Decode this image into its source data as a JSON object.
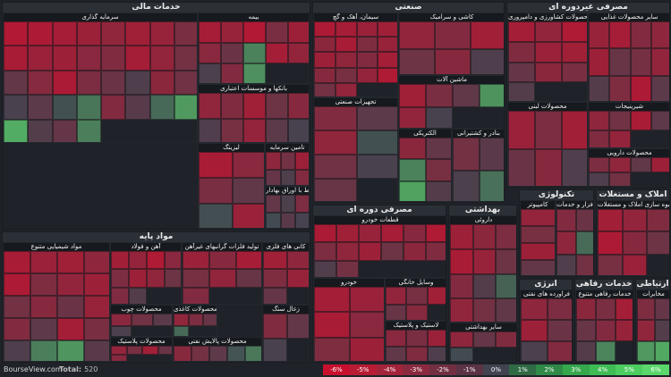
{
  "footer": {
    "brand": "BourseView.com",
    "total_label": "Total:",
    "total_value": "520"
  },
  "legend": [
    {
      "label": "-6%",
      "color": "#c8102e"
    },
    {
      "label": "-5%",
      "color": "#b81c34"
    },
    {
      "label": "-4%",
      "color": "#a3243a"
    },
    {
      "label": "-3%",
      "color": "#8b2a3f"
    },
    {
      "label": "-2%",
      "color": "#722f42"
    },
    {
      "label": "-1%",
      "color": "#5b3344"
    },
    {
      "label": "0%",
      "color": "#414450"
    },
    {
      "label": "1%",
      "color": "#2f6a45"
    },
    {
      "label": "2%",
      "color": "#2f8a48"
    },
    {
      "label": "3%",
      "color": "#35a84c"
    },
    {
      "label": "4%",
      "color": "#3fbd55"
    },
    {
      "label": "5%",
      "color": "#4ccd60"
    },
    {
      "label": "6%",
      "color": "#5ad86b"
    }
  ],
  "chart_data": {
    "type": "heatmap",
    "color_scale": {
      "min": -6,
      "max": 6,
      "negative": "#c8102e",
      "neutral": "#414450",
      "positive": "#5ad86b"
    },
    "sectors": [
      {
        "name": "خدمات مالی",
        "groups": [
          {
            "name": "سرمایه گذاری",
            "changes": [
              -5,
              -4.8,
              -4.5,
              -4,
              -3.5,
              -4.2,
              -3.8,
              -2.5,
              -4.6,
              -3.9,
              -4.1,
              -3.2,
              -2.8,
              -4.4,
              -3.6,
              -2.2,
              -1.5,
              -3,
              -4.7,
              -2.6,
              -1.8,
              -0.6,
              -3.3,
              -2.1,
              -0.4,
              -1.2,
              0.5,
              2,
              -2.9,
              -1,
              1.5,
              3.5,
              4.2,
              -0.8,
              -1.6,
              2.4
            ]
          },
          {
            "name": "بیمه",
            "changes": [
              -4.5,
              -3.8,
              -5,
              -2.5,
              -4.1,
              -3.2,
              -1.8,
              2.5,
              -4.4,
              -3.6,
              -0.5,
              -2.9,
              3.1
            ]
          },
          {
            "name": "بانکها و موسسات اعتباری",
            "changes": [
              -3.5,
              -2.8,
              -4.2,
              -1.9,
              -3.1,
              -0.7,
              -2.4,
              -3.7,
              -1.2,
              -0.3
            ]
          },
          {
            "name": "لیزینگ",
            "changes": [
              -4.6,
              -3.2,
              -2.5,
              -1.4,
              0.4,
              -3.9
            ]
          },
          {
            "name": "تامین سرمایه",
            "changes": [
              -3.4,
              -2.2,
              -4.1,
              -1.6,
              -0.6,
              -2.9
            ]
          },
          {
            "name": "فعالیتهای مرتبط با اوراق بهادار",
            "changes": [
              -1.5,
              -0.5,
              -2.6,
              0.3,
              -1.1,
              -0.2
            ]
          }
        ]
      },
      {
        "name": "صنعتی",
        "groups": [
          {
            "name": "سیمان، آهک و گچ",
            "changes": [
              -4.8,
              -4.5,
              -3.9,
              -4.2,
              -3.3,
              -4.6,
              -2.7,
              -3.8,
              -4.1,
              -3.5,
              -2.9,
              -4.4,
              -3.1,
              -2.4,
              -3.7,
              -4.9,
              -2.2,
              -3.6
            ]
          },
          {
            "name": "کاشی و سرامیک",
            "changes": [
              -3.6,
              -2.9,
              -4.3,
              -1.9,
              -3.1,
              -0.6
            ]
          },
          {
            "name": "ماشین آلات",
            "changes": [
              -4.2,
              -2.5,
              -1.4,
              3.2,
              -3.6,
              -0.3
            ]
          },
          {
            "name": "تجهیزات صنعتی",
            "changes": [
              -2.8,
              -1.2,
              -3.5,
              0.5,
              -2.1,
              -0.4,
              -1.7
            ]
          },
          {
            "name": "الکتریکی",
            "changes": [
              -3.3,
              -1.5,
              2.5,
              -2.4,
              3.8,
              -0.9
            ]
          },
          {
            "name": "بنادر و کشتیرانی",
            "changes": [
              -2.2,
              -1.1,
              -0.5,
              1.8
            ]
          }
        ]
      },
      {
        "name": "مصرفی غیردوره ای",
        "groups": [
          {
            "name": "محصولات کشاورزی و دامپروری",
            "changes": [
              -4.4,
              -3.6,
              -4.9,
              -2.8,
              -3.9,
              -4.2,
              -1.6,
              -3.3,
              -2.5,
              -0.8
            ]
          },
          {
            "name": "سایر محصولات غذایی",
            "changes": [
              -3.8,
              -4.5,
              -2.9,
              -3.4,
              -4.1,
              -1.7,
              -2.3,
              -3.6,
              -0.9,
              -2.7,
              -4.8,
              -1.2
            ]
          },
          {
            "name": "محصولات لبنی",
            "changes": [
              -3.9,
              -2.6,
              -4.3,
              -1.8,
              -3.1,
              -0.7
            ]
          },
          {
            "name": "شیرینیجات",
            "changes": [
              -3.4,
              -2.1,
              -4.6,
              -1.3,
              -2.8,
              -3.7
            ]
          },
          {
            "name": "محصولات دارویی",
            "changes": [
              -2.6,
              -3.5,
              -1.4,
              -4.1,
              -0.6,
              -2.2
            ]
          }
        ]
      },
      {
        "name": "مصرفی دوره ای",
        "groups": [
          {
            "name": "قطعات خودرو",
            "changes": [
              -4.7,
              -4.2,
              -3.8,
              -4.5,
              -3.1,
              -4.9,
              -2.6,
              -3.5,
              -4.1,
              -1.9,
              -3.3,
              -2.8,
              -0.7,
              -2.2
            ]
          },
          {
            "name": "خودرو",
            "changes": [
              -4.4,
              -3.9,
              -4.6,
              -3.2,
              -2.7,
              -4.1
            ]
          },
          {
            "name": "وسایل خانگی",
            "changes": [
              -3.6,
              -2.4,
              -4.2,
              -1.7,
              -3.1
            ]
          },
          {
            "name": "لاستیک و پلاستیک",
            "changes": [
              -3.2,
              -2.5,
              -3.9,
              -1.4,
              -2.8,
              -0.6
            ]
          }
        ]
      },
      {
        "name": "بهداشتی",
        "groups": [
          {
            "name": "داروئی",
            "changes": [
              -4.1,
              -3.3,
              -2.6,
              -4.6,
              -3.8,
              -1.9,
              -2.9,
              -0.8,
              1.2,
              -3.5,
              -2.2,
              -1.4
            ]
          },
          {
            "name": "سایر بهداشتی",
            "changes": [
              -3.4,
              -1.6,
              -2.8,
              0.3
            ]
          }
        ]
      },
      {
        "name": "تکنولوژی",
        "groups": [
          {
            "name": "کامپیوتر",
            "changes": [
              -3.7,
              -2.4,
              -4.1,
              -1.5
            ]
          },
          {
            "name": "نرم افزار و خدمات",
            "changes": [
              -2.9,
              -1.8,
              -3.4,
              1.6,
              -0.7,
              -2.2
            ]
          }
        ]
      },
      {
        "name": "املاک و مستغلات",
        "groups": [
          {
            "name": "انبوه سازی املاک و مستغلات",
            "changes": [
              -4.3,
              -3.6,
              -2.8,
              -4.8,
              -3.1,
              -1.9,
              -2.4,
              -3.9
            ]
          }
        ]
      },
      {
        "name": "مواد پایه",
        "groups": [
          {
            "name": "مواد شیمیایی متنوع",
            "changes": [
              -4.6,
              -3.9,
              -4.2,
              -3.4,
              -4.8,
              -2.7,
              -3.6,
              -4.1,
              -2.2,
              -3.1,
              -1.8,
              -3.8,
              -2.9,
              -1.3,
              -4.4,
              -2.5,
              -0.6,
              2.4,
              3.3,
              -1.1
            ]
          },
          {
            "name": "آهن و فولاد",
            "changes": [
              -4.3,
              -3.7,
              -4.9,
              -3.2,
              -2.6,
              -4.1,
              -3.5,
              -1.9,
              -2.8,
              -0.8
            ]
          },
          {
            "name": "تولید فلزات گرانبهای غیرآهن",
            "changes": [
              -3.9,
              -3.1,
              -4.5,
              -2.4,
              -3.6,
              -1.7,
              -2.9
            ]
          },
          {
            "name": "کانی های فلزی",
            "changes": [
              -4.2,
              -3.4,
              -2.7,
              -3.8,
              -1.6
            ]
          },
          {
            "name": "زغال سنگ",
            "changes": [
              -2.8,
              -1.5,
              -0.4
            ]
          },
          {
            "name": "محصولات چوب",
            "changes": [
              -3.2,
              -2.1,
              -1.1,
              -0.5
            ]
          },
          {
            "name": "محصولات کاغذی",
            "changes": [
              -3.5,
              -2.6,
              -1.7,
              1.5
            ]
          },
          {
            "name": "محصولات پلاستیک",
            "changes": [
              -3.6,
              -2.4,
              -4.2,
              -1.8,
              -3.1
            ]
          },
          {
            "name": "محصولات پالایش نفتی",
            "changes": [
              -3.1,
              -2.2,
              -1.3,
              0.6,
              2.1
            ]
          }
        ]
      },
      {
        "name": "انرژی",
        "groups": [
          {
            "name": "فراورده های نفتی",
            "changes": [
              -3.4,
              -2.6,
              -4.1,
              -1.8,
              -0.5,
              -2.9
            ]
          }
        ]
      },
      {
        "name": "خدمات رفاهی",
        "groups": [
          {
            "name": "خدمات رفاهی متنوع",
            "changes": [
              -3.3,
              -2.5,
              -4.4,
              -1.7,
              -2.9,
              -3.8,
              -0.9,
              2.6
            ]
          }
        ]
      },
      {
        "name": "ارتباطی",
        "groups": [
          {
            "name": "مخابرات",
            "changes": [
              -2.7,
              -1.6,
              -3.5,
              -0.8,
              3.4,
              4.1
            ]
          }
        ]
      }
    ]
  }
}
